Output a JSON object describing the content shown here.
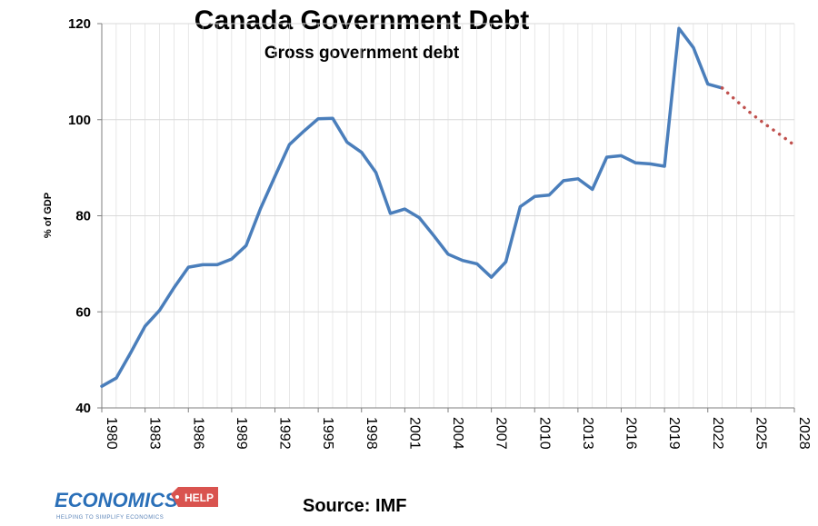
{
  "chart_data": {
    "type": "line",
    "title": "Canada Government Debt",
    "subtitle": "Gross government debt",
    "ylabel": "% of GDP",
    "xlabel": "",
    "ylim": [
      40,
      120
    ],
    "yticks": [
      40,
      60,
      80,
      100,
      120
    ],
    "xlim": [
      1980,
      2028
    ],
    "xtick_labels": [
      "1980",
      "1983",
      "1986",
      "1989",
      "1992",
      "1995",
      "1998",
      "2001",
      "2004",
      "2007",
      "2010",
      "2013",
      "2016",
      "2019",
      "2022",
      "2025",
      "2028"
    ],
    "grid": "horizontal and vertical",
    "legend": "none",
    "series": [
      {
        "style": "solid",
        "color": "#4a7ebb",
        "x": [
          1980,
          1981,
          1982,
          1983,
          1984,
          1985,
          1986,
          1987,
          1988,
          1989,
          1990,
          1991,
          1992,
          1993,
          1994,
          1995,
          1996,
          1997,
          1998,
          1999,
          2000,
          2001,
          2002,
          2003,
          2004,
          2005,
          2006,
          2007,
          2008,
          2009,
          2010,
          2011,
          2012,
          2013,
          2014,
          2015,
          2016,
          2017,
          2018,
          2019,
          2020,
          2021,
          2022,
          2023
        ],
        "values": [
          44.5,
          46.2,
          51.5,
          57.0,
          60.3,
          65.0,
          69.3,
          69.8,
          69.8,
          71.0,
          73.8,
          81.5,
          88.2,
          94.8,
          97.6,
          100.2,
          100.3,
          95.3,
          93.2,
          89.0,
          80.5,
          81.4,
          79.6,
          75.9,
          72.0,
          70.7,
          70.0,
          67.2,
          70.4,
          81.9,
          84.0,
          84.3,
          87.3,
          87.7,
          85.5,
          92.2,
          92.5,
          91.0,
          90.8,
          90.3,
          119.0,
          115.0,
          107.4,
          106.6
        ]
      },
      {
        "style": "dotted",
        "color": "#c0504d",
        "x": [
          2023,
          2024,
          2025,
          2026,
          2027,
          2028
        ],
        "values": [
          106.6,
          103.9,
          101.3,
          99.0,
          96.9,
          94.7
        ]
      }
    ]
  },
  "footer": {
    "logo": "ECONOMICS HELP",
    "logo_main": "ECONOMICS",
    "logo_badge": "HELP",
    "logo_tagline": "HELPING TO SIMPLIFY ECONOMICS",
    "source": "Source: IMF"
  },
  "colors": {
    "grid": "#d9d9d9",
    "axis": "#7f7f7f",
    "brand_blue": "#2a6fb8",
    "brand_red": "#d9534f"
  }
}
